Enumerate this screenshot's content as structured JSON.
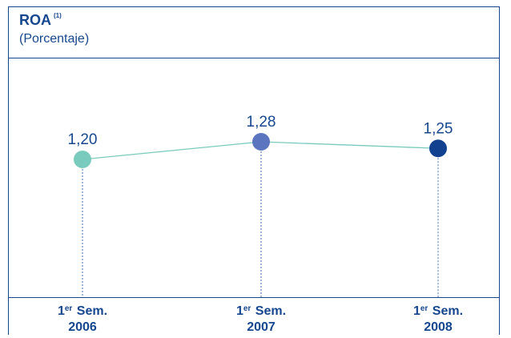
{
  "chart_data": {
    "type": "line",
    "title": "ROA",
    "title_note": "(1)",
    "subtitle": "(Porcentaje)",
    "categories": [
      {
        "prefix": "1",
        "sup": "er",
        "label": "Sem.",
        "year": "2006"
      },
      {
        "prefix": "1",
        "sup": "er",
        "label": "Sem.",
        "year": "2007"
      },
      {
        "prefix": "1",
        "sup": "er",
        "label": "Sem.",
        "year": "2008"
      }
    ],
    "values": [
      1.2,
      1.28,
      1.25
    ],
    "data_labels": [
      "1,20",
      "1,28",
      "1,25"
    ],
    "point_colors": [
      "#79cbbd",
      "#5b75bf",
      "#11418f"
    ],
    "line_color": "#79cbbd",
    "drop_line_color": "#3d6fb3",
    "text_color": "#16478e",
    "grid": false
  }
}
